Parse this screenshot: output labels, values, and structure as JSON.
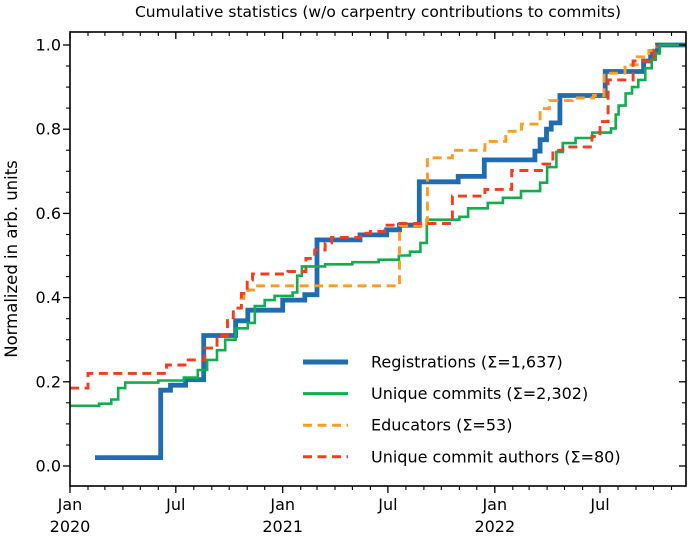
{
  "chart": {
    "title": "Cumulative statistics (w/o carpentry contributions to commits)",
    "ylabel": "Normalized in arb. units"
  },
  "chart_data": {
    "type": "line",
    "step": true,
    "title": "Cumulative statistics (w/o carpentry contributions to commits)",
    "xlabel": "",
    "ylabel": "Normalized in arb. units",
    "grid": false,
    "legend_position": "lower right",
    "x_axis": {
      "range": [
        "2020-01-01",
        "2022-11-26"
      ],
      "major_tick_dates": [
        "2020-01-01",
        "2020-07-01",
        "2021-01-01",
        "2021-07-01",
        "2022-01-01",
        "2022-07-01"
      ],
      "major_tick_labels": [
        "Jan",
        "Jul",
        "Jan",
        "Jul",
        "Jan",
        "Jul"
      ],
      "year_labels": [
        [
          "2020-01-01",
          "2020"
        ],
        [
          "2021-01-01",
          "2021"
        ],
        [
          "2022-01-01",
          "2022"
        ]
      ],
      "minor_ticks": "monthly"
    },
    "y_axis": {
      "range": [
        -0.048,
        1.031
      ],
      "major_ticks": [
        0.0,
        0.2,
        0.4,
        0.6,
        0.8,
        1.0
      ],
      "major_tick_labels": [
        "0.0",
        "0.2",
        "0.4",
        "0.6",
        "0.8",
        "1.0"
      ],
      "minor_step": 0.05
    },
    "series": [
      {
        "name": "registrations",
        "label": "Registrations  (Σ=1,637)",
        "sum": 1637,
        "color": "#1f6cb0",
        "width": 4.8,
        "dash": null,
        "extend_to_right_edge": true,
        "points": [
          [
            "2020-02-13",
            0.02
          ],
          [
            "2020-06-05",
            0.18
          ],
          [
            "2020-06-22",
            0.192
          ],
          [
            "2020-07-18",
            0.205
          ],
          [
            "2020-08-18",
            0.31
          ],
          [
            "2020-10-12",
            0.345
          ],
          [
            "2020-11-02",
            0.37
          ],
          [
            "2021-01-01",
            0.394
          ],
          [
            "2021-02-08",
            0.407
          ],
          [
            "2021-03-01",
            0.537
          ],
          [
            "2021-05-14",
            0.549
          ],
          [
            "2021-06-29",
            0.561
          ],
          [
            "2021-07-21",
            0.572
          ],
          [
            "2021-08-24",
            0.675
          ],
          [
            "2021-10-30",
            0.688
          ],
          [
            "2021-12-14",
            0.727
          ],
          [
            "2022-03-11",
            0.748
          ],
          [
            "2022-03-20",
            0.775
          ],
          [
            "2022-03-31",
            0.8
          ],
          [
            "2022-04-08",
            0.815
          ],
          [
            "2022-04-23",
            0.88
          ],
          [
            "2022-07-10",
            0.937
          ],
          [
            "2022-09-14",
            0.962
          ],
          [
            "2022-09-26",
            0.984
          ],
          [
            "2022-10-08",
            1.0
          ]
        ]
      },
      {
        "name": "unique-commits",
        "label": "Unique commits (Σ=2,302)",
        "sum": 2302,
        "color": "#12ad4d",
        "width": 2.6,
        "dash": null,
        "extend_to_right_edge": true,
        "points": [
          [
            "2020-01-01",
            0.143
          ],
          [
            "2020-02-20",
            0.148
          ],
          [
            "2020-03-12",
            0.158
          ],
          [
            "2020-03-24",
            0.185
          ],
          [
            "2020-04-05",
            0.198
          ],
          [
            "2020-06-01",
            0.203
          ],
          [
            "2020-07-15",
            0.21
          ],
          [
            "2020-08-08",
            0.228
          ],
          [
            "2020-08-24",
            0.252
          ],
          [
            "2020-09-10",
            0.275
          ],
          [
            "2020-09-24",
            0.3
          ],
          [
            "2020-10-12",
            0.327
          ],
          [
            "2020-11-02",
            0.34
          ],
          [
            "2020-11-14",
            0.38
          ],
          [
            "2020-12-01",
            0.394
          ],
          [
            "2020-12-18",
            0.404
          ],
          [
            "2021-01-18",
            0.412
          ],
          [
            "2021-01-26",
            0.452
          ],
          [
            "2021-02-03",
            0.474
          ],
          [
            "2021-03-15",
            0.479
          ],
          [
            "2021-05-01",
            0.484
          ],
          [
            "2021-06-15",
            0.49
          ],
          [
            "2021-07-20",
            0.5
          ],
          [
            "2021-08-08",
            0.509
          ],
          [
            "2021-08-26",
            0.53
          ],
          [
            "2021-09-06",
            0.585
          ],
          [
            "2021-11-01",
            0.592
          ],
          [
            "2021-11-16",
            0.612
          ],
          [
            "2021-12-20",
            0.625
          ],
          [
            "2022-01-15",
            0.637
          ],
          [
            "2022-02-15",
            0.653
          ],
          [
            "2022-03-20",
            0.673
          ],
          [
            "2022-04-01",
            0.71
          ],
          [
            "2022-04-17",
            0.746
          ],
          [
            "2022-04-28",
            0.767
          ],
          [
            "2022-05-20",
            0.779
          ],
          [
            "2022-06-18",
            0.792
          ],
          [
            "2022-07-20",
            0.802
          ],
          [
            "2022-07-28",
            0.835
          ],
          [
            "2022-08-02",
            0.856
          ],
          [
            "2022-08-14",
            0.885
          ],
          [
            "2022-08-25",
            0.9
          ],
          [
            "2022-09-05",
            0.917
          ],
          [
            "2022-09-17",
            0.945
          ],
          [
            "2022-09-28",
            0.965
          ],
          [
            "2022-10-05",
            0.98
          ],
          [
            "2022-10-12",
            1.0
          ]
        ]
      },
      {
        "name": "educators",
        "label": "Educators (Σ=53)",
        "sum": 53,
        "color": "#ff9c20",
        "width": 2.9,
        "dash": [
          9,
          5.5
        ],
        "extend_to_right_edge": false,
        "points": [
          [
            "2020-10-19",
            0.398
          ],
          [
            "2020-10-26",
            0.406
          ],
          [
            "2020-11-02",
            0.418
          ],
          [
            "2020-11-12",
            0.428
          ],
          [
            "2021-07-21",
            0.571
          ],
          [
            "2021-09-07",
            0.732
          ],
          [
            "2021-10-20",
            0.75
          ],
          [
            "2021-12-15",
            0.771
          ],
          [
            "2022-01-20",
            0.795
          ],
          [
            "2022-02-16",
            0.812
          ],
          [
            "2022-03-20",
            0.849
          ],
          [
            "2022-04-05",
            0.868
          ],
          [
            "2022-05-15",
            0.874
          ],
          [
            "2022-06-20",
            0.88
          ],
          [
            "2022-07-08",
            0.933
          ],
          [
            "2022-08-13",
            0.953
          ],
          [
            "2022-09-03",
            0.972
          ],
          [
            "2022-09-23",
            0.987
          ],
          [
            "2022-10-06",
            1.0
          ]
        ]
      },
      {
        "name": "unique-commit-authors",
        "label": "Unique commit authors (Σ=80)",
        "sum": 80,
        "color": "#f43d1e",
        "width": 2.9,
        "dash": [
          9,
          5.5
        ],
        "extend_to_right_edge": false,
        "points": [
          [
            "2020-01-01",
            0.185
          ],
          [
            "2020-02-01",
            0.22
          ],
          [
            "2020-06-15",
            0.24
          ],
          [
            "2020-07-20",
            0.252
          ],
          [
            "2020-08-20",
            0.28
          ],
          [
            "2020-09-10",
            0.31
          ],
          [
            "2020-09-28",
            0.352
          ],
          [
            "2020-10-08",
            0.375
          ],
          [
            "2020-10-22",
            0.41
          ],
          [
            "2020-11-01",
            0.442
          ],
          [
            "2020-11-10",
            0.456
          ],
          [
            "2021-01-10",
            0.462
          ],
          [
            "2021-02-10",
            0.493
          ],
          [
            "2021-02-25",
            0.513
          ],
          [
            "2021-03-15",
            0.53
          ],
          [
            "2021-03-26",
            0.543
          ],
          [
            "2021-05-15",
            0.553
          ],
          [
            "2021-06-01",
            0.557
          ],
          [
            "2021-06-25",
            0.572
          ],
          [
            "2021-07-10",
            0.576
          ],
          [
            "2021-10-20",
            0.641
          ],
          [
            "2021-12-15",
            0.657
          ],
          [
            "2022-01-30",
            0.702
          ],
          [
            "2022-03-25",
            0.717
          ],
          [
            "2022-04-11",
            0.75
          ],
          [
            "2022-04-28",
            0.758
          ],
          [
            "2022-06-17",
            0.783
          ],
          [
            "2022-07-01",
            0.818
          ],
          [
            "2022-07-15",
            0.917
          ],
          [
            "2022-08-27",
            0.962
          ],
          [
            "2022-10-02",
            0.988
          ],
          [
            "2022-10-08",
            1.0
          ]
        ]
      }
    ]
  }
}
